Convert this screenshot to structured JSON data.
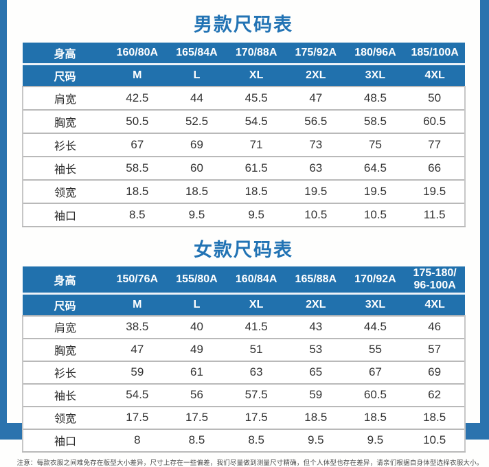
{
  "page": {
    "accent_color": "#2171ad",
    "frame_color": "#2b73ae",
    "note": "注意：每款衣服之间难免存在版型大小差异，尺寸上存在一些偏差，我们尽量做到测量尺寸精确，但个人体型也存在差异，请亲们根据自身体型选择衣服大小。"
  },
  "tables": [
    {
      "title": "男款尺码表",
      "header_rows": [
        {
          "label": "身高",
          "values": [
            "160/80A",
            "165/84A",
            "170/88A",
            "175/92A",
            "180/96A",
            "185/100A"
          ]
        },
        {
          "label": "尺码",
          "values": [
            "M",
            "L",
            "XL",
            "2XL",
            "3XL",
            "4XL"
          ]
        }
      ],
      "rows": [
        {
          "label": "肩宽",
          "values": [
            "42.5",
            "44",
            "45.5",
            "47",
            "48.5",
            "50"
          ]
        },
        {
          "label": "胸宽",
          "values": [
            "50.5",
            "52.5",
            "54.5",
            "56.5",
            "58.5",
            "60.5"
          ]
        },
        {
          "label": "衫长",
          "values": [
            "67",
            "69",
            "71",
            "73",
            "75",
            "77"
          ]
        },
        {
          "label": "袖长",
          "values": [
            "58.5",
            "60",
            "61.5",
            "63",
            "64.5",
            "66"
          ]
        },
        {
          "label": "领宽",
          "values": [
            "18.5",
            "18.5",
            "18.5",
            "19.5",
            "19.5",
            "19.5"
          ]
        },
        {
          "label": "袖口",
          "values": [
            "8.5",
            "9.5",
            "9.5",
            "10.5",
            "10.5",
            "11.5"
          ]
        }
      ]
    },
    {
      "title": "女款尺码表",
      "header_rows": [
        {
          "label": "身高",
          "values": [
            "150/76A",
            "155/80A",
            "160/84A",
            "165/88A",
            "170/92A",
            "175-180/\n96-100A"
          ]
        },
        {
          "label": "尺码",
          "values": [
            "M",
            "L",
            "XL",
            "2XL",
            "3XL",
            "4XL"
          ]
        }
      ],
      "rows": [
        {
          "label": "肩宽",
          "values": [
            "38.5",
            "40",
            "41.5",
            "43",
            "44.5",
            "46"
          ]
        },
        {
          "label": "胸宽",
          "values": [
            "47",
            "49",
            "51",
            "53",
            "55",
            "57"
          ]
        },
        {
          "label": "衫长",
          "values": [
            "59",
            "61",
            "63",
            "65",
            "67",
            "69"
          ]
        },
        {
          "label": "袖长",
          "values": [
            "54.5",
            "56",
            "57.5",
            "59",
            "60.5",
            "62"
          ]
        },
        {
          "label": "领宽",
          "values": [
            "17.5",
            "17.5",
            "17.5",
            "18.5",
            "18.5",
            "18.5"
          ]
        },
        {
          "label": "袖口",
          "values": [
            "8",
            "8.5",
            "8.5",
            "9.5",
            "9.5",
            "10.5"
          ]
        }
      ]
    }
  ]
}
